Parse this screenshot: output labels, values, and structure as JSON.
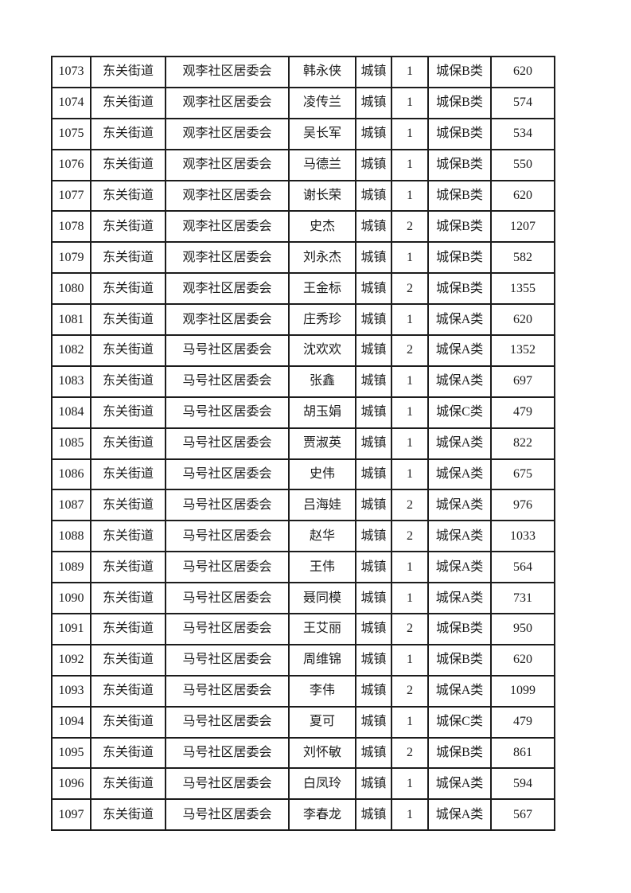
{
  "table": {
    "columns": [
      {
        "key": "id",
        "name": "serial-number-cell"
      },
      {
        "key": "street",
        "name": "street-name-cell"
      },
      {
        "key": "community",
        "name": "community-name-cell"
      },
      {
        "key": "person",
        "name": "person-name-cell"
      },
      {
        "key": "hhtype",
        "name": "household-type-cell"
      },
      {
        "key": "count",
        "name": "person-count-cell"
      },
      {
        "key": "category",
        "name": "insurance-category-cell"
      },
      {
        "key": "amount",
        "name": "amount-cell"
      }
    ],
    "rows": [
      {
        "id": "1073",
        "street": "东关街道",
        "community": "观李社区居委会",
        "person": "韩永侠",
        "hhtype": "城镇",
        "count": "1",
        "category": "城保B类",
        "amount": "620"
      },
      {
        "id": "1074",
        "street": "东关街道",
        "community": "观李社区居委会",
        "person": "凌传兰",
        "hhtype": "城镇",
        "count": "1",
        "category": "城保B类",
        "amount": "574"
      },
      {
        "id": "1075",
        "street": "东关街道",
        "community": "观李社区居委会",
        "person": "吴长军",
        "hhtype": "城镇",
        "count": "1",
        "category": "城保B类",
        "amount": "534"
      },
      {
        "id": "1076",
        "street": "东关街道",
        "community": "观李社区居委会",
        "person": "马德兰",
        "hhtype": "城镇",
        "count": "1",
        "category": "城保B类",
        "amount": "550"
      },
      {
        "id": "1077",
        "street": "东关街道",
        "community": "观李社区居委会",
        "person": "谢长荣",
        "hhtype": "城镇",
        "count": "1",
        "category": "城保B类",
        "amount": "620"
      },
      {
        "id": "1078",
        "street": "东关街道",
        "community": "观李社区居委会",
        "person": "史杰",
        "hhtype": "城镇",
        "count": "2",
        "category": "城保B类",
        "amount": "1207"
      },
      {
        "id": "1079",
        "street": "东关街道",
        "community": "观李社区居委会",
        "person": "刘永杰",
        "hhtype": "城镇",
        "count": "1",
        "category": "城保B类",
        "amount": "582"
      },
      {
        "id": "1080",
        "street": "东关街道",
        "community": "观李社区居委会",
        "person": "王金标",
        "hhtype": "城镇",
        "count": "2",
        "category": "城保B类",
        "amount": "1355"
      },
      {
        "id": "1081",
        "street": "东关街道",
        "community": "观李社区居委会",
        "person": "庄秀珍",
        "hhtype": "城镇",
        "count": "1",
        "category": "城保A类",
        "amount": "620"
      },
      {
        "id": "1082",
        "street": "东关街道",
        "community": "马号社区居委会",
        "person": "沈欢欢",
        "hhtype": "城镇",
        "count": "2",
        "category": "城保A类",
        "amount": "1352"
      },
      {
        "id": "1083",
        "street": "东关街道",
        "community": "马号社区居委会",
        "person": "张鑫",
        "hhtype": "城镇",
        "count": "1",
        "category": "城保A类",
        "amount": "697"
      },
      {
        "id": "1084",
        "street": "东关街道",
        "community": "马号社区居委会",
        "person": "胡玉娟",
        "hhtype": "城镇",
        "count": "1",
        "category": "城保C类",
        "amount": "479"
      },
      {
        "id": "1085",
        "street": "东关街道",
        "community": "马号社区居委会",
        "person": "贾淑英",
        "hhtype": "城镇",
        "count": "1",
        "category": "城保A类",
        "amount": "822"
      },
      {
        "id": "1086",
        "street": "东关街道",
        "community": "马号社区居委会",
        "person": "史伟",
        "hhtype": "城镇",
        "count": "1",
        "category": "城保A类",
        "amount": "675"
      },
      {
        "id": "1087",
        "street": "东关街道",
        "community": "马号社区居委会",
        "person": "吕海娃",
        "hhtype": "城镇",
        "count": "2",
        "category": "城保A类",
        "amount": "976"
      },
      {
        "id": "1088",
        "street": "东关街道",
        "community": "马号社区居委会",
        "person": "赵华",
        "hhtype": "城镇",
        "count": "2",
        "category": "城保A类",
        "amount": "1033"
      },
      {
        "id": "1089",
        "street": "东关街道",
        "community": "马号社区居委会",
        "person": "王伟",
        "hhtype": "城镇",
        "count": "1",
        "category": "城保A类",
        "amount": "564"
      },
      {
        "id": "1090",
        "street": "东关街道",
        "community": "马号社区居委会",
        "person": "聂同模",
        "hhtype": "城镇",
        "count": "1",
        "category": "城保A类",
        "amount": "731"
      },
      {
        "id": "1091",
        "street": "东关街道",
        "community": "马号社区居委会",
        "person": "王艾丽",
        "hhtype": "城镇",
        "count": "2",
        "category": "城保B类",
        "amount": "950"
      },
      {
        "id": "1092",
        "street": "东关街道",
        "community": "马号社区居委会",
        "person": "周维锦",
        "hhtype": "城镇",
        "count": "1",
        "category": "城保B类",
        "amount": "620"
      },
      {
        "id": "1093",
        "street": "东关街道",
        "community": "马号社区居委会",
        "person": "李伟",
        "hhtype": "城镇",
        "count": "2",
        "category": "城保A类",
        "amount": "1099"
      },
      {
        "id": "1094",
        "street": "东关街道",
        "community": "马号社区居委会",
        "person": "夏可",
        "hhtype": "城镇",
        "count": "1",
        "category": "城保C类",
        "amount": "479"
      },
      {
        "id": "1095",
        "street": "东关街道",
        "community": "马号社区居委会",
        "person": "刘怀敏",
        "hhtype": "城镇",
        "count": "2",
        "category": "城保B类",
        "amount": "861"
      },
      {
        "id": "1096",
        "street": "东关街道",
        "community": "马号社区居委会",
        "person": "白凤玲",
        "hhtype": "城镇",
        "count": "1",
        "category": "城保A类",
        "amount": "594"
      },
      {
        "id": "1097",
        "street": "东关街道",
        "community": "马号社区居委会",
        "person": "李春龙",
        "hhtype": "城镇",
        "count": "1",
        "category": "城保A类",
        "amount": "567"
      }
    ]
  }
}
